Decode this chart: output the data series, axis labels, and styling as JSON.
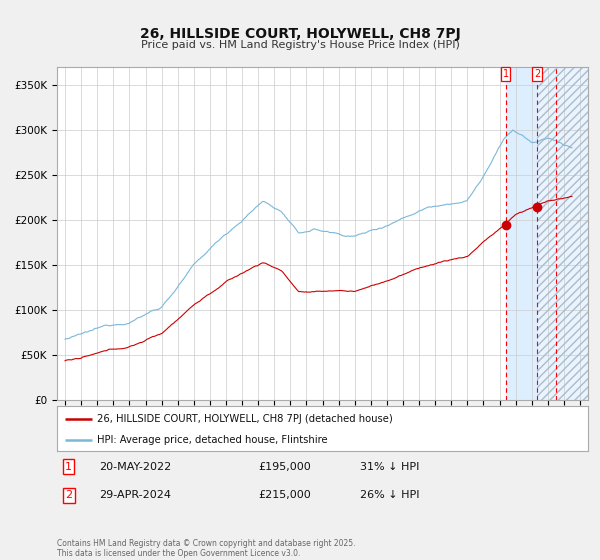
{
  "title": "26, HILLSIDE COURT, HOLYWELL, CH8 7PJ",
  "subtitle": "Price paid vs. HM Land Registry's House Price Index (HPI)",
  "legend_line1": "26, HILLSIDE COURT, HOLYWELL, CH8 7PJ (detached house)",
  "legend_line2": "HPI: Average price, detached house, Flintshire",
  "transaction1_date": "20-MAY-2022",
  "transaction1_price": 195000,
  "transaction1_note": "31% ↓ HPI",
  "transaction2_date": "29-APR-2024",
  "transaction2_price": 215000,
  "transaction2_note": "26% ↓ HPI",
  "footer": "Contains HM Land Registry data © Crown copyright and database right 2025.\nThis data is licensed under the Open Government Licence v3.0.",
  "hpi_color": "#7ab8d9",
  "price_color": "#cc0000",
  "background_color": "#f0f0f0",
  "plot_bg_color": "#ffffff",
  "highlight_bg": "#ddeeff",
  "grid_color": "#cccccc",
  "ylim": [
    0,
    370000
  ],
  "start_year": 1995,
  "end_year": 2027,
  "transaction1_year": 2022.38,
  "transaction2_year": 2024.33,
  "transaction3_year": 2025.5
}
